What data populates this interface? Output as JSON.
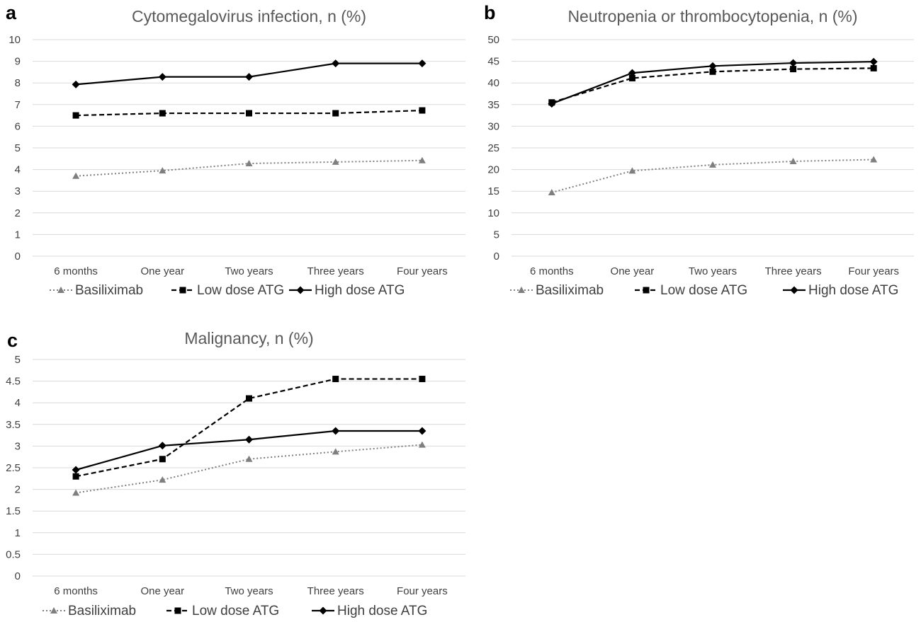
{
  "chart_data": [
    {
      "type": "line",
      "panel": "a",
      "title": "Cytomegalovirus infection, n (%)",
      "categories": [
        "6 months",
        "One year",
        "Two years",
        "Three years",
        "Four years"
      ],
      "ylim": [
        0,
        10
      ],
      "yticks": [
        "0",
        "1",
        "2",
        "3",
        "4",
        "5",
        "6",
        "7",
        "8",
        "9",
        "10"
      ],
      "grid": true,
      "legend": "bottom",
      "series": [
        {
          "name": "Basiliximab",
          "values": [
            3.7,
            3.95,
            4.28,
            4.35,
            4.42
          ],
          "color": "#7f7f7f",
          "style": "dotted",
          "marker": "triangle"
        },
        {
          "name": "Low dose ATG",
          "values": [
            6.5,
            6.6,
            6.6,
            6.6,
            6.73
          ],
          "color": "#000000",
          "style": "dashed",
          "marker": "square"
        },
        {
          "name": "High dose ATG",
          "values": [
            7.93,
            8.28,
            8.28,
            8.9,
            8.9
          ],
          "color": "#000000",
          "style": "solid",
          "marker": "diamond"
        }
      ]
    },
    {
      "type": "line",
      "panel": "b",
      "title": "Neutropenia or thrombocytopenia, n (%)",
      "categories": [
        "6 months",
        "One year",
        "Two years",
        "Three years",
        "Four years"
      ],
      "ylim": [
        0,
        50
      ],
      "yticks": [
        "0",
        "5",
        "10",
        "15",
        "20",
        "25",
        "30",
        "35",
        "40",
        "45",
        "50"
      ],
      "grid": true,
      "legend": "bottom",
      "series": [
        {
          "name": "Basiliximab",
          "values": [
            14.7,
            19.7,
            21.1,
            21.9,
            22.3
          ],
          "color": "#7f7f7f",
          "style": "dotted",
          "marker": "triangle"
        },
        {
          "name": "Low dose ATG",
          "values": [
            35.5,
            41.1,
            42.6,
            43.2,
            43.4
          ],
          "color": "#000000",
          "style": "dashed",
          "marker": "square"
        },
        {
          "name": "High dose ATG",
          "values": [
            35.2,
            42.3,
            43.9,
            44.6,
            44.9
          ],
          "color": "#000000",
          "style": "solid",
          "marker": "diamond"
        }
      ]
    },
    {
      "type": "line",
      "panel": "c",
      "title": "Malignancy, n (%)",
      "categories": [
        "6 months",
        "One year",
        "Two years",
        "Three years",
        "Four years"
      ],
      "ylim": [
        0,
        5
      ],
      "yticks": [
        "0",
        "0.5",
        "1",
        "1.5",
        "2",
        "2.5",
        "3",
        "3.5",
        "4",
        "4.5",
        "5"
      ],
      "grid": true,
      "legend": "bottom",
      "series": [
        {
          "name": "Basiliximab",
          "values": [
            1.92,
            2.22,
            2.7,
            2.87,
            3.03
          ],
          "color": "#7f7f7f",
          "style": "dotted",
          "marker": "triangle"
        },
        {
          "name": "Low dose ATG",
          "values": [
            2.3,
            2.7,
            4.1,
            4.55,
            4.55
          ],
          "color": "#000000",
          "style": "dashed",
          "marker": "square"
        },
        {
          "name": "High dose ATG",
          "values": [
            2.45,
            3.01,
            3.15,
            3.35,
            3.35
          ],
          "color": "#000000",
          "style": "solid",
          "marker": "diamond"
        }
      ]
    }
  ]
}
